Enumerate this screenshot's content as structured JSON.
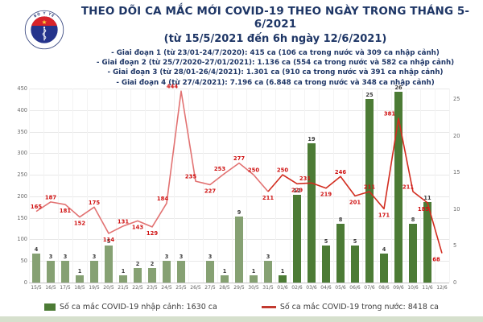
{
  "header": {
    "title_line1": "THEO DÕI CA MẮC MỚI COVID-19 THEO NGÀY TRONG THÁNG 5-6/2021",
    "title_line2": "(từ 15/5/2021 đến 6h ngày 12/6/2021)",
    "bullets": [
      "- Giai đoạn 1 (từ 23/01-24/7/2020): 415 ca (106 ca trong nước và 309 ca nhập cảnh)",
      "- Giai đoạn 2 (từ 25/7/2020-27/01/2021): 1.136 ca (554 ca trong nước và 582 ca nhập cảnh)",
      "- Giai đoạn 3 (từ 28/01-26/4/2021): 1.301 ca (910 ca trong nước và 391 ca nhập cảnh)",
      "- Giai đoạn 4 (từ 27/4/2021): 7.196 ca (6.848 ca trong nước và 348 ca nhập cảnh)"
    ],
    "logo": {
      "top_text": "BỘ Y TẾ",
      "bottom_text": "MINISTRY OF HEALTH"
    }
  },
  "chart_data": {
    "type": "bar+line",
    "categories": [
      "15/5",
      "16/5",
      "17/5",
      "18/5",
      "19/5",
      "20/5",
      "21/5",
      "22/5",
      "23/5",
      "24/5",
      "25/5",
      "26/5",
      "27/5",
      "28/5",
      "29/5",
      "30/5",
      "31/5",
      "01/6",
      "02/6",
      "03/6",
      "04/6",
      "05/6",
      "06/6",
      "07/6",
      "08/6",
      "09/6",
      "10/6",
      "11/6",
      "12/6"
    ],
    "series": [
      {
        "name": "Số ca mắc COVID-19 nhập cảnh",
        "type": "bar",
        "axis": "right",
        "values": [
          4,
          3,
          3,
          1,
          3,
          5,
          1,
          2,
          2,
          3,
          3,
          0,
          3,
          1,
          9,
          1,
          3,
          1,
          12,
          19,
          5,
          8,
          5,
          25,
          4,
          26,
          8,
          11,
          0
        ],
        "color_may": "#86a173",
        "color_june": "#4c7b35"
      },
      {
        "name": "Số ca mắc COVID-19 trong nước",
        "type": "line",
        "axis": "left",
        "values": [
          165,
          187,
          181,
          152,
          175,
          114,
          131,
          143,
          129,
          184,
          444,
          235,
          227,
          253,
          277,
          250,
          211,
          250,
          229,
          231,
          219,
          246,
          201,
          211,
          171,
          381,
          211,
          185,
          68
        ],
        "color_may": "#e27272",
        "color_june": "#d22c1f",
        "label_color": "#cf1212"
      }
    ],
    "left_axis": {
      "min": 0,
      "max": 450,
      "step": 50,
      "ticks": [
        "0",
        "50",
        "100",
        "150",
        "200",
        "250",
        "300",
        "350",
        "400",
        "450"
      ]
    },
    "right_axis": {
      "min": 0,
      "max": 25,
      "step": 5,
      "ticks": [
        "0",
        "5",
        "10",
        "15",
        "20",
        "25"
      ]
    },
    "legend": [
      {
        "label": "Số ca mắc COVID-19 nhập cảnh: 1630 ca",
        "marker": "square",
        "color": "#4c7b35"
      },
      {
        "label": "Số ca mắc COVID-19 trong nước: 8418 ca",
        "marker": "line",
        "color": "#c23a30"
      }
    ],
    "grid": true,
    "legend_position": "bottom"
  }
}
